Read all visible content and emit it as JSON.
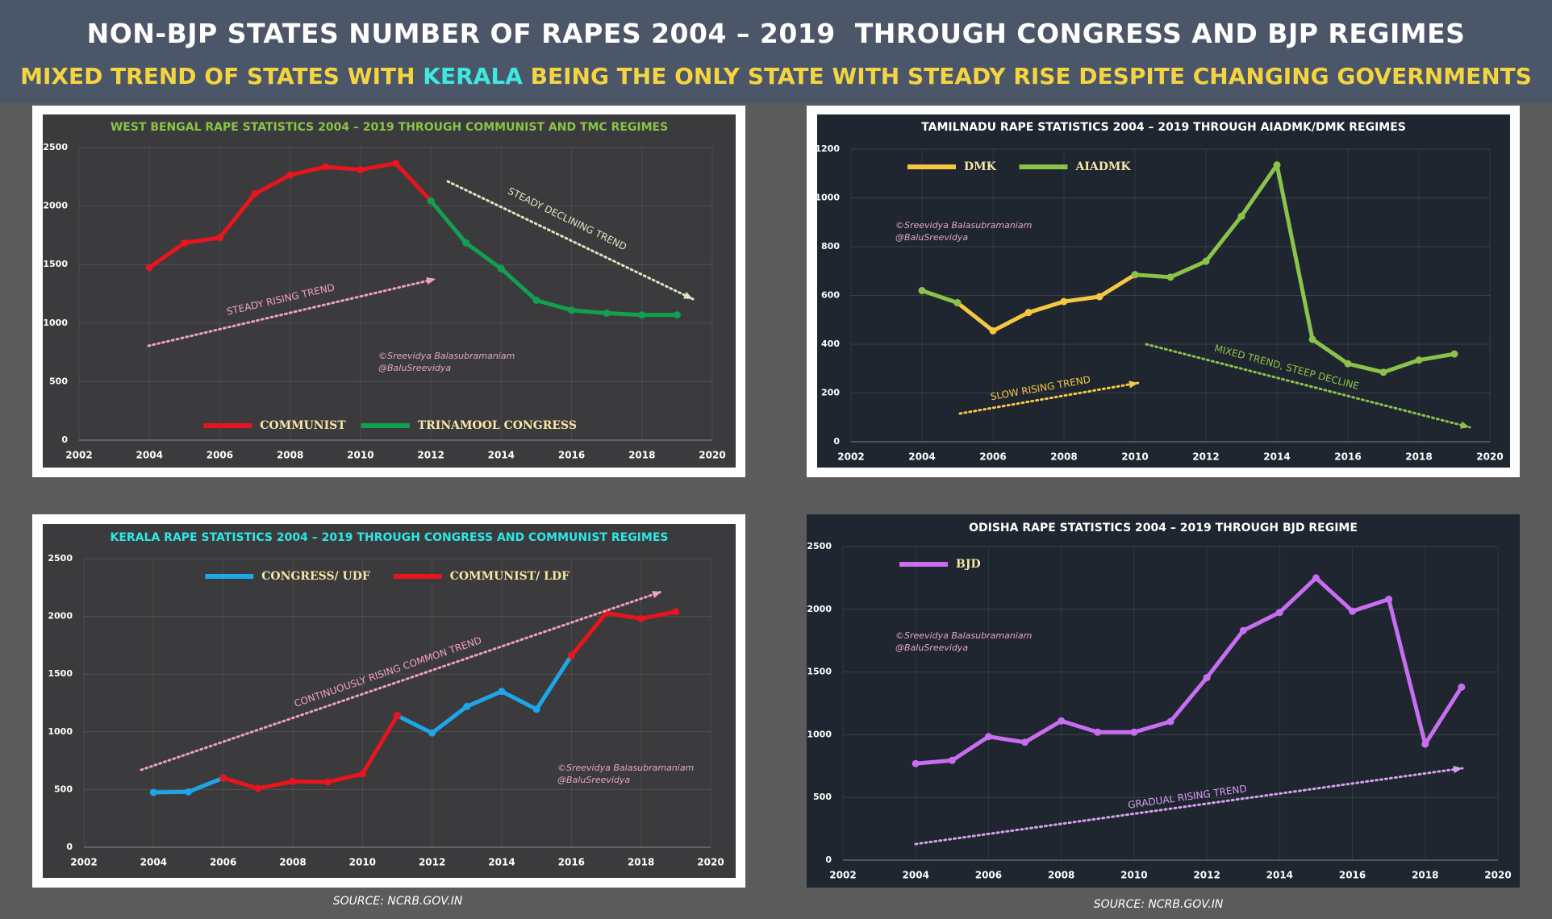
{
  "header": {
    "title": "NON-BJP STATES NUMBER OF RAPES 2004 – 2019  THROUGH CONGRESS AND BJP REGIMES",
    "subtitle": [
      "MIXED TREND OF STATES WITH",
      "KERALA",
      "BEING THE ONLY STATE WITH STEADY RISE DESPITE CHANGING GOVERNMENTS"
    ]
  },
  "sources": [
    "SOURCE: NCRB.GOV.IN",
    "SOURCE: NCRB.GOV.IN"
  ],
  "chart_data": [
    {
      "type": "line",
      "title": "WEST BENGAL RAPE STATISTICS 2004 – 2019 THROUGH COMMUNIST AND TMC REGIMES",
      "x": [
        2004,
        2005,
        2006,
        2007,
        2008,
        2009,
        2010,
        2011,
        2012,
        2013,
        2014,
        2015,
        2016,
        2017,
        2018,
        2019
      ],
      "series": [
        {
          "name": "COMMUNIST",
          "color": "#e8141e",
          "values": [
            1475,
            1685,
            1730,
            2105,
            2265,
            2335,
            2310,
            2365,
            2045,
            null,
            null,
            null,
            null,
            null,
            null,
            null
          ]
        },
        {
          "name": "TRINAMOOL CONGRESS",
          "color": "#12a050",
          "values": [
            null,
            null,
            null,
            null,
            null,
            null,
            null,
            null,
            2045,
            1685,
            1465,
            1195,
            1110,
            1085,
            1070,
            1070
          ]
        }
      ],
      "xlim": [
        2002,
        2020
      ],
      "xticks": [
        2002,
        2004,
        2006,
        2008,
        2010,
        2012,
        2014,
        2016,
        2018,
        2020
      ],
      "ylim": [
        0,
        2500
      ],
      "yticks": [
        0,
        500,
        1000,
        1500,
        2000,
        2500
      ],
      "grid": true,
      "legend": "lower center",
      "annotations": [
        "STEADY RISING TREND",
        "STEADY DECLINING TREND"
      ],
      "credits": [
        "©Sreevidya Balasubramaniam",
        "@BaluSreevidya"
      ]
    },
    {
      "type": "line",
      "title": "TAMILNADU RAPE STATISTICS 2004 – 2019 THROUGH AIADMK/DMK REGIMES",
      "x": [
        2004,
        2005,
        2006,
        2007,
        2008,
        2009,
        2010,
        2011,
        2012,
        2013,
        2014,
        2015,
        2016,
        2017,
        2018,
        2019
      ],
      "series": [
        {
          "name": "DMK",
          "color": "#f5c842",
          "values": [
            null,
            570,
            455,
            530,
            575,
            595,
            685,
            null,
            null,
            null,
            null,
            null,
            null,
            null,
            null,
            null
          ]
        },
        {
          "name": "AIADMK",
          "color": "#8bc34a",
          "values": [
            620,
            570,
            null,
            null,
            null,
            null,
            685,
            675,
            740,
            925,
            1135,
            420,
            320,
            285,
            335,
            360
          ]
        }
      ],
      "xlim": [
        2002,
        2020
      ],
      "xticks": [
        2002,
        2004,
        2006,
        2008,
        2010,
        2012,
        2014,
        2016,
        2018,
        2020
      ],
      "ylim": [
        0,
        1200
      ],
      "yticks": [
        0,
        200,
        400,
        600,
        800,
        1000,
        1200
      ],
      "grid": true,
      "legend": "upper left",
      "annotations": [
        "SLOW RISING TREND",
        "MIXED TREND, STEEP DECLINE"
      ],
      "credits": [
        "©Sreevidya Balasubramaniam",
        "@BaluSreevidya"
      ]
    },
    {
      "type": "line",
      "title": "KERALA RAPE STATISTICS 2004 – 2019 THROUGH CONGRESS AND COMMUNIST REGIMES",
      "x": [
        2004,
        2005,
        2006,
        2007,
        2008,
        2009,
        2010,
        2011,
        2012,
        2013,
        2014,
        2015,
        2016,
        2017,
        2018,
        2019
      ],
      "series": [
        {
          "name": "CONGRESS/ UDF",
          "color": "#1ea7e8",
          "values": [
            475,
            480,
            600,
            null,
            null,
            null,
            null,
            1140,
            990,
            1220,
            1350,
            1195,
            1660,
            null,
            null,
            null
          ]
        },
        {
          "name": "COMMUNIST/ LDF",
          "color": "#e8141e",
          "values": [
            null,
            null,
            600,
            510,
            570,
            565,
            635,
            1140,
            null,
            null,
            null,
            null,
            1660,
            2030,
            1980,
            2040
          ]
        }
      ],
      "xlim": [
        2002,
        2020
      ],
      "xticks": [
        2002,
        2004,
        2006,
        2008,
        2010,
        2012,
        2014,
        2016,
        2018,
        2020
      ],
      "ylim": [
        0,
        2500
      ],
      "yticks": [
        0,
        500,
        1000,
        1500,
        2000,
        2500
      ],
      "grid": true,
      "legend": "upper center",
      "annotations": [
        "CONTINUOUSLY RISING COMMON TREND"
      ],
      "credits": [
        "©Sreevidya Balasubramaniam",
        "@BaluSreevidya"
      ]
    },
    {
      "type": "line",
      "title": "ODISHA RAPE STATISTICS 2004 – 2019 THROUGH BJD REGIME",
      "x": [
        2004,
        2005,
        2006,
        2007,
        2008,
        2009,
        2010,
        2011,
        2012,
        2013,
        2014,
        2015,
        2016,
        2017,
        2018,
        2019
      ],
      "series": [
        {
          "name": "BJD",
          "color": "#c86ef0",
          "values": [
            770,
            795,
            985,
            940,
            1110,
            1020,
            1020,
            1105,
            1455,
            1830,
            1975,
            2250,
            1985,
            2080,
            925,
            1380
          ]
        }
      ],
      "xlim": [
        2002,
        2020
      ],
      "xticks": [
        2002,
        2004,
        2006,
        2008,
        2010,
        2012,
        2014,
        2016,
        2018,
        2020
      ],
      "ylim": [
        0,
        2500
      ],
      "yticks": [
        0,
        500,
        1000,
        1500,
        2000,
        2500
      ],
      "grid": true,
      "legend": "upper left",
      "annotations": [
        "GRADUAL RISING TREND"
      ],
      "credits": [
        "©Sreevidya Balasubramaniam",
        "@BaluSreevidya"
      ]
    }
  ]
}
